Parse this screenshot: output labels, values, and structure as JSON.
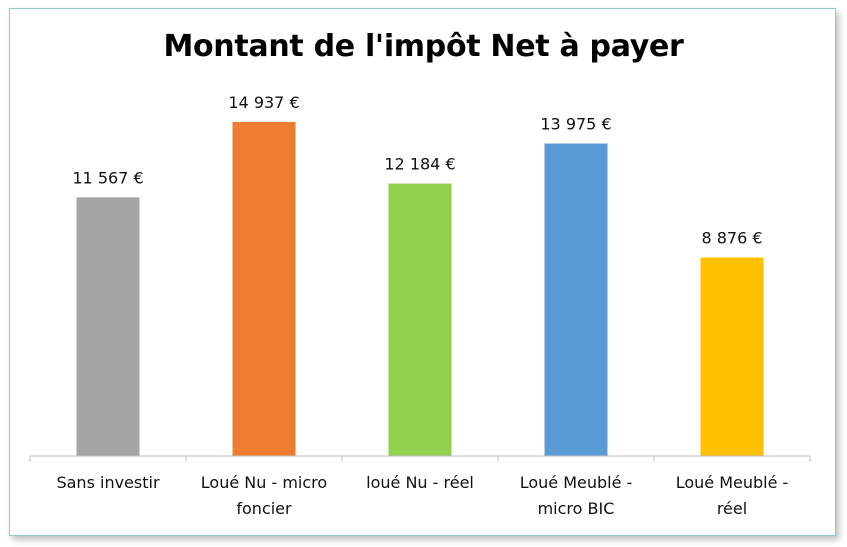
{
  "chart_data": {
    "type": "bar",
    "title": "Montant de l'impôt Net à payer",
    "categories": [
      [
        "Sans investir"
      ],
      [
        "Loué Nu - micro",
        "foncier"
      ],
      [
        "loué Nu - réel"
      ],
      [
        "Loué Meublé -",
        "micro BIC"
      ],
      [
        "Loué Meublé -",
        "réel"
      ]
    ],
    "values": [
      11567,
      14937,
      12184,
      13975,
      8876
    ],
    "value_labels": [
      "11 567 €",
      "14 937 €",
      "12 184 €",
      "13 975 €",
      "8 876 €"
    ],
    "colors": [
      "#a5a5a5",
      "#ed7d31",
      "#92d050",
      "#5b9bd5",
      "#ffc000"
    ],
    "ylim": [
      0,
      16000
    ],
    "grid": false,
    "legend": "none"
  }
}
